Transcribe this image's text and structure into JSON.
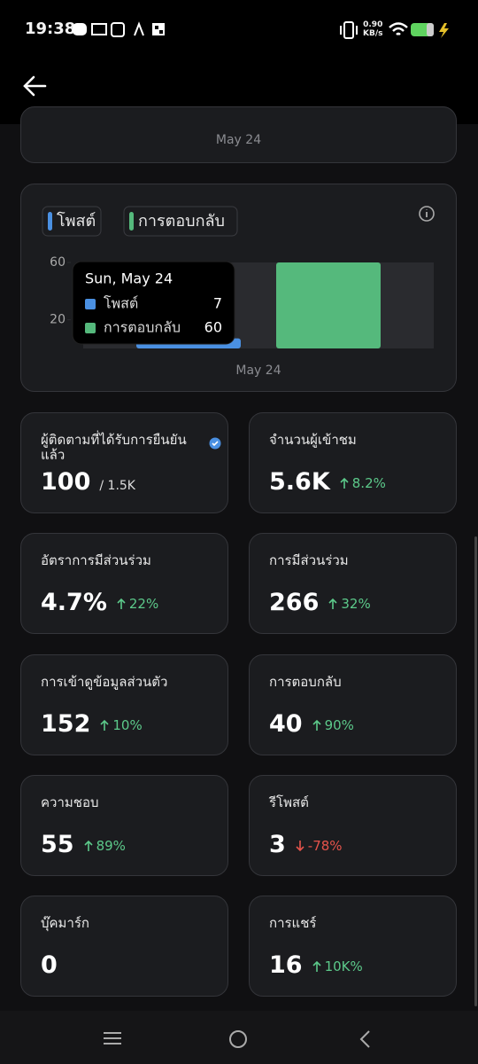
{
  "status_bar": {
    "time": "19:38",
    "speed": "0.90",
    "speed_unit": "KB/s"
  },
  "top_card": {
    "x_label": "May 24"
  },
  "chart": {
    "type": "bar",
    "categories": [
      "May 24"
    ],
    "series": [
      {
        "name": "โพสต์",
        "color": "#4a90e2",
        "values": [
          7
        ]
      },
      {
        "name": "การตอบกลับ",
        "color": "#55b97c",
        "values": [
          60
        ]
      }
    ],
    "ylim": [
      0,
      60
    ],
    "yticks": [
      20,
      60
    ],
    "tooltip": {
      "title": "Sun, May 24"
    }
  },
  "metrics": [
    {
      "label": "ผู้ติดตามที่ได้รับการยืนยันแล้ว",
      "value": "100",
      "total": "/ 1.5K",
      "verified": true
    },
    {
      "label": "จำนวนผู้เข้าชม",
      "value": "5.6K",
      "change": "8.2%",
      "trend": "up"
    },
    {
      "label": "อัตราการมีส่วนร่วม",
      "value": "4.7%",
      "change": "22%",
      "trend": "up"
    },
    {
      "label": "การมีส่วนร่วม",
      "value": "266",
      "change": "32%",
      "trend": "up"
    },
    {
      "label": "การเข้าดูข้อมูลส่วนตัว",
      "value": "152",
      "change": "10%",
      "trend": "up"
    },
    {
      "label": "การตอบกลับ",
      "value": "40",
      "change": "90%",
      "trend": "up"
    },
    {
      "label": "ความชอบ",
      "value": "55",
      "change": "89%",
      "trend": "up"
    },
    {
      "label": "รีโพสต์",
      "value": "3",
      "change": "-78%",
      "trend": "down"
    },
    {
      "label": "บุ๊คมาร์ก",
      "value": "0"
    },
    {
      "label": "การแชร์",
      "value": "16",
      "change": "10K%",
      "trend": "up"
    }
  ]
}
